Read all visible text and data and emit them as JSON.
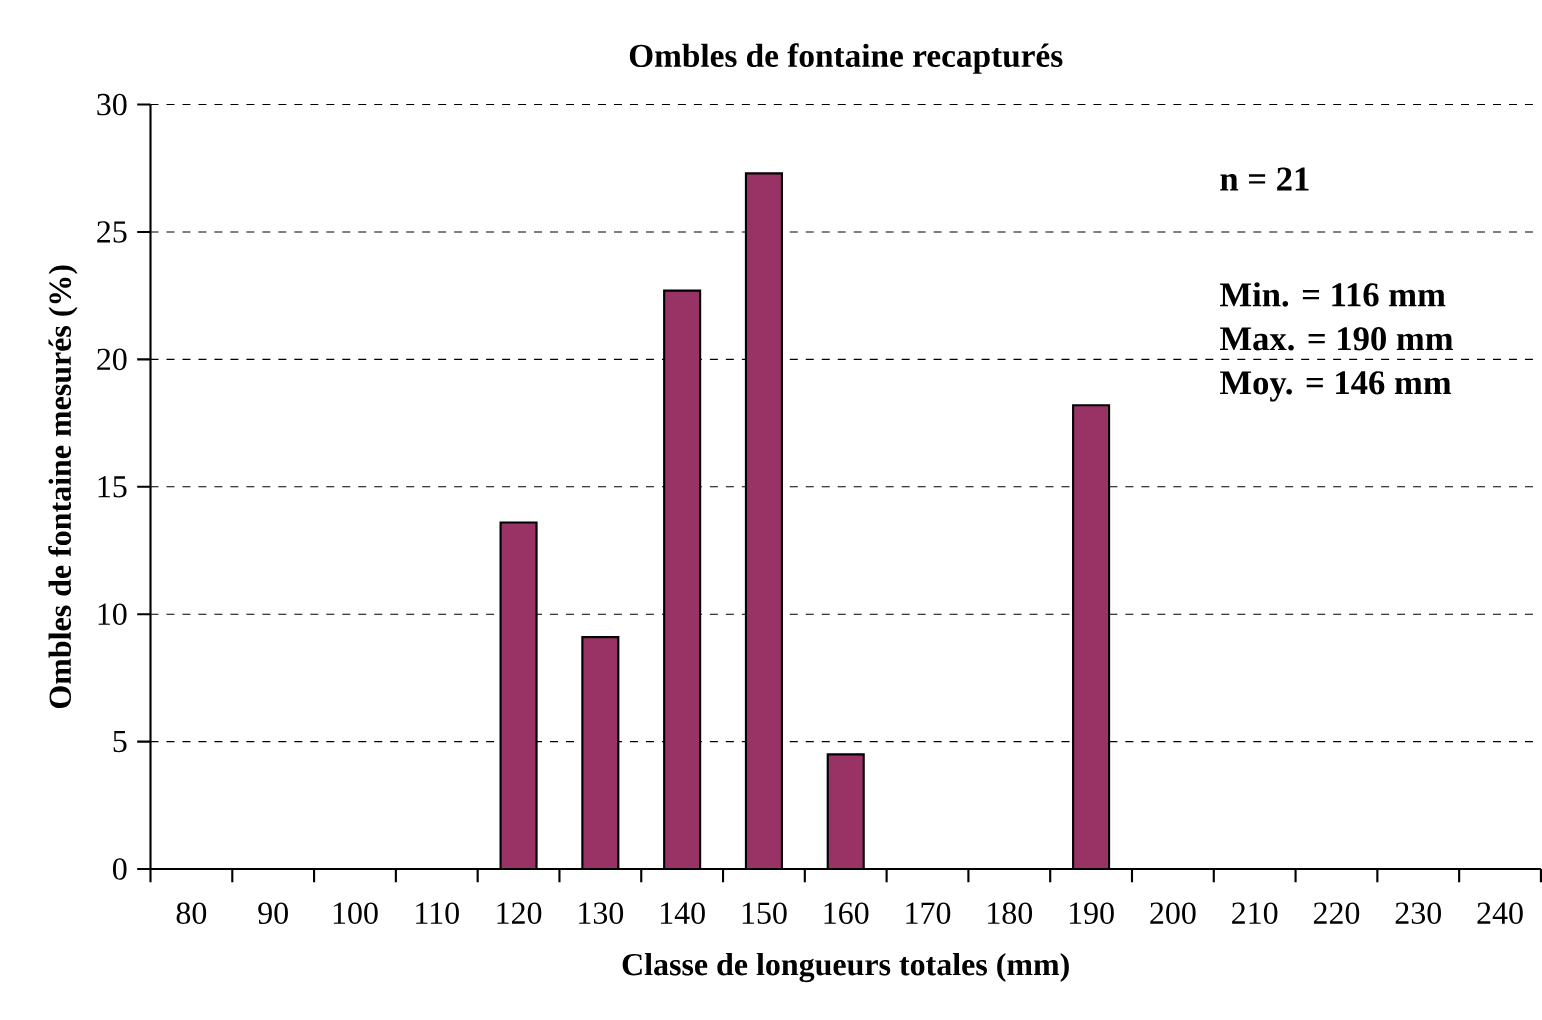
{
  "chart_data": {
    "type": "bar",
    "title": "Ombles de fontaine recapturés",
    "xlabel": "Classe de longueurs totales (mm)",
    "ylabel": "Ombles de fontaine mesurés (%)",
    "categories": [
      "80",
      "90",
      "100",
      "110",
      "120",
      "130",
      "140",
      "150",
      "160",
      "170",
      "180",
      "190",
      "200",
      "210",
      "220",
      "230",
      "240"
    ],
    "values": [
      null,
      null,
      null,
      null,
      13.6,
      9.1,
      22.7,
      27.3,
      4.5,
      null,
      null,
      18.2,
      null,
      null,
      null,
      null,
      null
    ],
    "color": "#993366",
    "ylim": [
      0,
      30
    ],
    "yticks": [
      0,
      5,
      10,
      15,
      20,
      25,
      30
    ],
    "grid": "y",
    "annotations": [
      "n = 21",
      "Min. = 116 mm",
      "Max. = 190 mm",
      "Moy. = 146 mm"
    ]
  }
}
